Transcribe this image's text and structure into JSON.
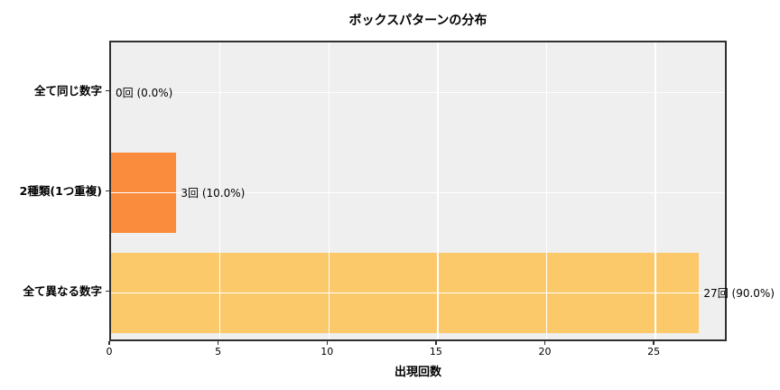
{
  "chart_data": {
    "type": "bar",
    "orientation": "horizontal",
    "title": "ボックスパターンの分布",
    "xlabel": "出現回数",
    "categories": [
      "全て同じ数字",
      "2種類(1つ重複)",
      "全て異なる数字"
    ],
    "values": [
      0,
      3,
      27
    ],
    "percentages": [
      0.0,
      10.0,
      90.0
    ],
    "value_labels": [
      "0回 (0.0%)",
      "3回 (10.0%)",
      "27回 (90.0%)"
    ],
    "bar_colors": [
      "#fa8c3d",
      "#fa8c3d",
      "#fcc96a"
    ],
    "xticks": [
      0,
      5,
      10,
      15,
      20,
      25
    ],
    "xtick_labels": [
      "0",
      "5",
      "10",
      "15",
      "20",
      "25"
    ],
    "xlim": [
      0,
      28.35
    ],
    "grid": "on",
    "grid_color": "#ffffff",
    "plot_background": "#efefef",
    "figure_background": "#ffffff",
    "frame_color": "#2f2f2f",
    "legend": null
  }
}
